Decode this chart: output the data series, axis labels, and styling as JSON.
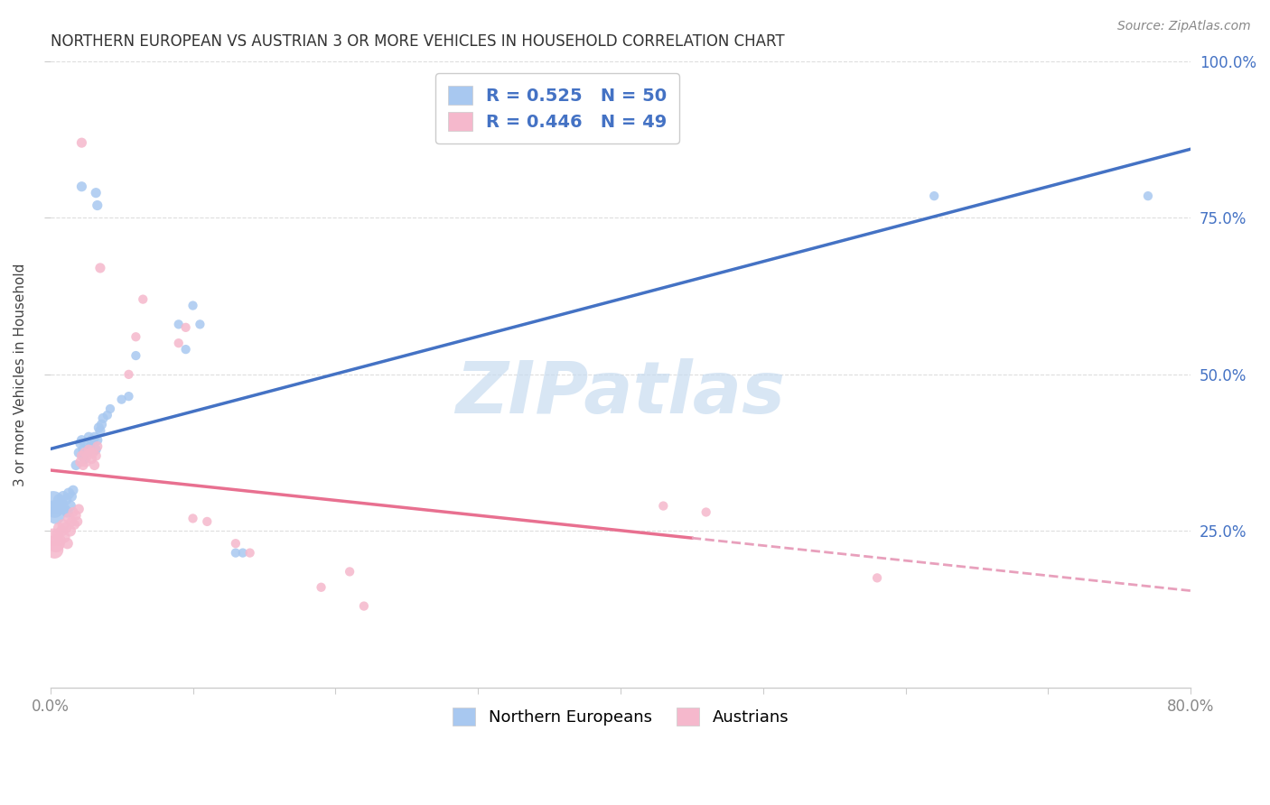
{
  "title": "NORTHERN EUROPEAN VS AUSTRIAN 3 OR MORE VEHICLES IN HOUSEHOLD CORRELATION CHART",
  "source": "Source: ZipAtlas.com",
  "ylabel": "3 or more Vehicles in Household",
  "xlim": [
    0.0,
    0.8
  ],
  "ylim": [
    0.0,
    1.0
  ],
  "xtick_positions": [
    0.0,
    0.1,
    0.2,
    0.3,
    0.4,
    0.5,
    0.6,
    0.7,
    0.8
  ],
  "xticklabels_show": {
    "0.0": "0.0%",
    "0.80": "80.0%"
  },
  "yticks_right": [
    0.25,
    0.5,
    0.75,
    1.0
  ],
  "ytick_labels_right": [
    "25.0%",
    "50.0%",
    "75.0%",
    "100.0%"
  ],
  "blue_color": "#A8C8F0",
  "pink_color": "#F5B8CC",
  "blue_line_color": "#4472C4",
  "pink_line_color": "#E87090",
  "pink_dash_color": "#E8A0BC",
  "legend_text_color": "#4472C4",
  "r_blue": 0.525,
  "n_blue": 50,
  "r_pink": 0.446,
  "n_pink": 49,
  "watermark": "ZIPatlas",
  "blue_points": [
    [
      0.002,
      0.295
    ],
    [
      0.003,
      0.285
    ],
    [
      0.004,
      0.275
    ],
    [
      0.005,
      0.29
    ],
    [
      0.006,
      0.3
    ],
    [
      0.007,
      0.285
    ],
    [
      0.008,
      0.295
    ],
    [
      0.009,
      0.305
    ],
    [
      0.01,
      0.285
    ],
    [
      0.011,
      0.3
    ],
    [
      0.012,
      0.28
    ],
    [
      0.013,
      0.31
    ],
    [
      0.014,
      0.29
    ],
    [
      0.015,
      0.305
    ],
    [
      0.016,
      0.315
    ],
    [
      0.018,
      0.355
    ],
    [
      0.02,
      0.375
    ],
    [
      0.021,
      0.39
    ],
    [
      0.022,
      0.395
    ],
    [
      0.023,
      0.38
    ],
    [
      0.024,
      0.365
    ],
    [
      0.025,
      0.39
    ],
    [
      0.026,
      0.375
    ],
    [
      0.027,
      0.4
    ],
    [
      0.028,
      0.385
    ],
    [
      0.029,
      0.395
    ],
    [
      0.03,
      0.395
    ],
    [
      0.031,
      0.4
    ],
    [
      0.032,
      0.38
    ],
    [
      0.033,
      0.395
    ],
    [
      0.034,
      0.415
    ],
    [
      0.035,
      0.41
    ],
    [
      0.036,
      0.42
    ],
    [
      0.037,
      0.43
    ],
    [
      0.04,
      0.435
    ],
    [
      0.042,
      0.445
    ],
    [
      0.05,
      0.46
    ],
    [
      0.055,
      0.465
    ],
    [
      0.022,
      0.8
    ],
    [
      0.032,
      0.79
    ],
    [
      0.033,
      0.77
    ],
    [
      0.06,
      0.53
    ],
    [
      0.09,
      0.58
    ],
    [
      0.095,
      0.54
    ],
    [
      0.1,
      0.61
    ],
    [
      0.105,
      0.58
    ],
    [
      0.13,
      0.215
    ],
    [
      0.135,
      0.215
    ],
    [
      0.62,
      0.785
    ],
    [
      0.77,
      0.785
    ]
  ],
  "pink_points": [
    [
      0.002,
      0.24
    ],
    [
      0.003,
      0.22
    ],
    [
      0.004,
      0.23
    ],
    [
      0.005,
      0.245
    ],
    [
      0.006,
      0.255
    ],
    [
      0.007,
      0.235
    ],
    [
      0.008,
      0.25
    ],
    [
      0.009,
      0.26
    ],
    [
      0.01,
      0.24
    ],
    [
      0.011,
      0.255
    ],
    [
      0.012,
      0.23
    ],
    [
      0.013,
      0.27
    ],
    [
      0.014,
      0.25
    ],
    [
      0.015,
      0.265
    ],
    [
      0.016,
      0.28
    ],
    [
      0.017,
      0.26
    ],
    [
      0.018,
      0.275
    ],
    [
      0.019,
      0.265
    ],
    [
      0.02,
      0.285
    ],
    [
      0.021,
      0.36
    ],
    [
      0.022,
      0.37
    ],
    [
      0.023,
      0.355
    ],
    [
      0.024,
      0.375
    ],
    [
      0.025,
      0.36
    ],
    [
      0.026,
      0.37
    ],
    [
      0.027,
      0.38
    ],
    [
      0.028,
      0.375
    ],
    [
      0.029,
      0.365
    ],
    [
      0.03,
      0.375
    ],
    [
      0.031,
      0.355
    ],
    [
      0.032,
      0.37
    ],
    [
      0.033,
      0.385
    ],
    [
      0.022,
      0.87
    ],
    [
      0.035,
      0.67
    ],
    [
      0.055,
      0.5
    ],
    [
      0.06,
      0.56
    ],
    [
      0.065,
      0.62
    ],
    [
      0.09,
      0.55
    ],
    [
      0.095,
      0.575
    ],
    [
      0.1,
      0.27
    ],
    [
      0.11,
      0.265
    ],
    [
      0.13,
      0.23
    ],
    [
      0.14,
      0.215
    ],
    [
      0.19,
      0.16
    ],
    [
      0.21,
      0.185
    ],
    [
      0.22,
      0.13
    ],
    [
      0.43,
      0.29
    ],
    [
      0.46,
      0.28
    ],
    [
      0.58,
      0.175
    ]
  ],
  "blue_size_base": 55,
  "pink_size_base": 55,
  "grid_color": "#DDDDDD",
  "grid_linestyle": "--",
  "background_color": "#FFFFFF"
}
